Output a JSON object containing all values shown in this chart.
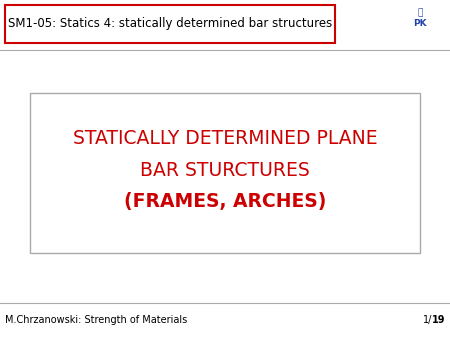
{
  "title_box_text": "SM1-05: Statics 4: statically determined bar structures",
  "title_box_edgecolor": "#cc0000",
  "title_text_color": "#000000",
  "title_fontsize": 8.5,
  "main_line1": "STATICALLY DETERMINED PLANE",
  "main_line2": "BAR STURCTURES",
  "main_line3": "(FRAMES, ARCHES)",
  "main_text_color": "#cc0000",
  "main_fontsize": 13.5,
  "footer_left": "M.Chrzanowski: Strength of Materials",
  "footer_right": "1/19",
  "footer_bold": "19",
  "footer_fontsize": 7.0,
  "footer_color": "#000000",
  "background_color": "#ffffff",
  "box_edgecolor": "#aaaaaa",
  "line_color": "#aaaaaa",
  "logo_color": "#2244aa"
}
